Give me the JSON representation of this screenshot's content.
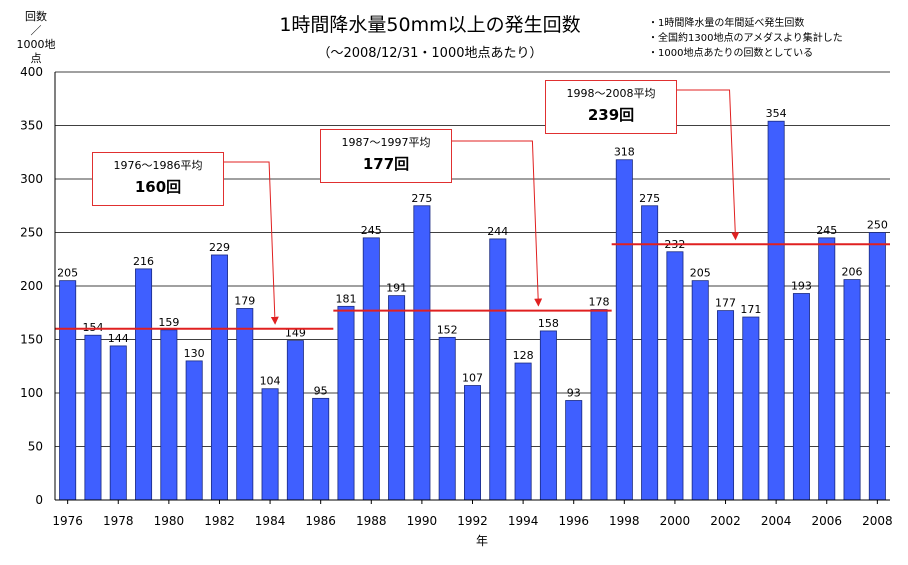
{
  "chart_data": {
    "type": "bar",
    "title": "1時間降水量50mm以上の発生回数",
    "subtitle": "（～2008/12/31・1000地点あたり）",
    "ylabel_lines": [
      "回数",
      "／",
      "1000地点"
    ],
    "xlabel": "年",
    "ylim": [
      0,
      400
    ],
    "yticks": [
      0,
      50,
      100,
      150,
      200,
      250,
      300,
      350,
      400
    ],
    "xtick_labels": [
      "1976",
      "1978",
      "1980",
      "1982",
      "1984",
      "1986",
      "1988",
      "1990",
      "1992",
      "1994",
      "1996",
      "1998",
      "2000",
      "2002",
      "2004",
      "2006",
      "2008"
    ],
    "grid": true,
    "bar_color": "#3f5fff",
    "categories": [
      "1976",
      "1977",
      "1978",
      "1979",
      "1980",
      "1981",
      "1982",
      "1983",
      "1984",
      "1985",
      "1986",
      "1987",
      "1988",
      "1989",
      "1990",
      "1991",
      "1992",
      "1993",
      "1994",
      "1995",
      "1996",
      "1997",
      "1998",
      "1999",
      "2000",
      "2001",
      "2002",
      "2003",
      "2004",
      "2005",
      "2006",
      "2007",
      "2008"
    ],
    "values": [
      205,
      154,
      144,
      216,
      159,
      130,
      229,
      179,
      104,
      149,
      95,
      181,
      245,
      191,
      275,
      152,
      107,
      244,
      128,
      158,
      93,
      178,
      318,
      275,
      232,
      205,
      177,
      171,
      354,
      193,
      245,
      206,
      250
    ],
    "notes": [
      "・1時間降水量の年間延べ発生回数",
      "・全国約1300地点のアメダスより集計した",
      "・1000地点あたりの回数としている"
    ],
    "averages": [
      {
        "label": "1976～1986平均",
        "value_text": "160回",
        "value": 160,
        "from": "1976",
        "to": "1986"
      },
      {
        "label": "1987～1997平均",
        "value_text": "177回",
        "value": 177,
        "from": "1987",
        "to": "1997"
      },
      {
        "label": "1998～2008平均",
        "value_text": "239回",
        "value": 239,
        "from": "1998",
        "to": "2008"
      }
    ],
    "accent_color": "#e02020"
  }
}
